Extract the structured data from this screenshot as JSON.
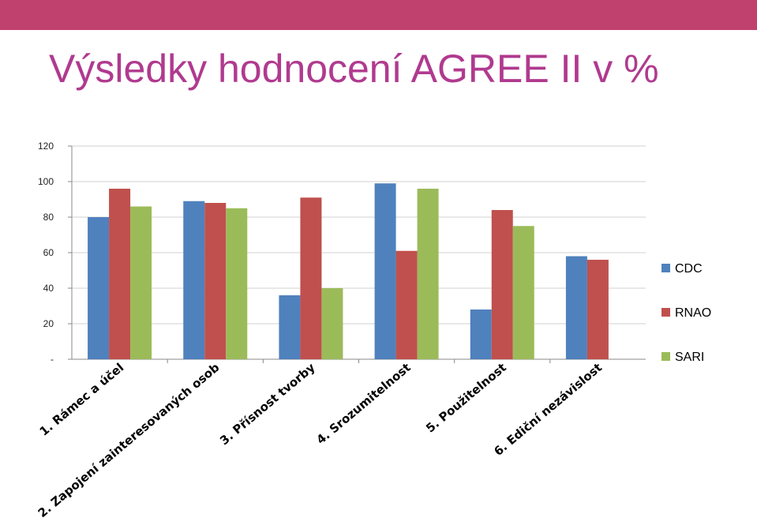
{
  "slide": {
    "title": "Výsledky hodnocení AGREE II v %",
    "accent_color": "#c0416d",
    "title_color": "#b03a8f"
  },
  "chart_data": {
    "type": "bar",
    "title": "",
    "xlabel": "",
    "ylabel": "",
    "ylim": [
      0,
      120
    ],
    "yticks": [
      0,
      20,
      40,
      60,
      80,
      100,
      120
    ],
    "ytick_labels": [
      "-",
      "20",
      "40",
      "60",
      "80",
      "100",
      "120"
    ],
    "grid": true,
    "legend_position": "right",
    "categories": [
      "1. Rámec a účel",
      "2. Zapojení zainteresovaných osob",
      "3. Přísnost tvorby",
      "4. Srozumitelnost",
      "5. Použitelnost",
      "6. Ediční nezávislost"
    ],
    "series": [
      {
        "name": "CDC",
        "color": "#4f81bd",
        "values": [
          80,
          89,
          36,
          99,
          28,
          58
        ]
      },
      {
        "name": "RNAO",
        "color": "#c0504d",
        "values": [
          96,
          88,
          91,
          61,
          84,
          56
        ]
      },
      {
        "name": "SARI",
        "color": "#9bbb59",
        "values": [
          86,
          85,
          40,
          96,
          75,
          null
        ]
      }
    ]
  }
}
